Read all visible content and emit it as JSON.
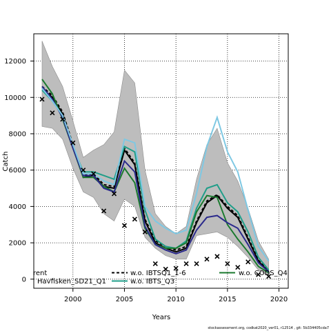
{
  "chart_data": {
    "type": "line",
    "title": "",
    "xlabel": "Years",
    "ylabel": "Catch",
    "xlim": [
      1996.2,
      2020.9
    ],
    "ylim": [
      -500,
      13500
    ],
    "grid": true,
    "grid_style": "dotted",
    "x_ticks": [
      2000,
      2005,
      2010,
      2015,
      2020
    ],
    "x_tick_labels": [
      "2000",
      "2005",
      "2010",
      "2015",
      "2020"
    ],
    "y_ticks": [
      0,
      2000,
      4000,
      6000,
      8000,
      10000,
      12000
    ],
    "y_tick_labels": [
      "0",
      "2000",
      "4000",
      "6000",
      "8000",
      "10000",
      "12000"
    ],
    "years": [
      1997,
      1998,
      1999,
      2000,
      2001,
      2002,
      2003,
      2004,
      2005,
      2006,
      2007,
      2008,
      2009,
      2010,
      2011,
      2012,
      2013,
      2014,
      2015,
      2016,
      2017,
      2018,
      2019
    ],
    "confidence_band": {
      "upper": [
        13100,
        11700,
        10600,
        8700,
        6700,
        7100,
        7400,
        8100,
        11500,
        10800,
        6000,
        3600,
        2900,
        2500,
        2900,
        5500,
        7400,
        8300,
        6400,
        5400,
        3900,
        2100,
        1100
      ],
      "lower": [
        8400,
        8300,
        7700,
        6100,
        4800,
        4500,
        3600,
        3200,
        4400,
        4000,
        2300,
        1700,
        1300,
        1100,
        1100,
        2400,
        2500,
        2600,
        2300,
        1800,
        1200,
        500,
        200
      ]
    },
    "series": [
      {
        "name": "",
        "color": "#000000",
        "style": "solid",
        "values": [
          10500,
          10000,
          9100,
          7300,
          5600,
          5700,
          5100,
          5000,
          7100,
          6300,
          3200,
          2000,
          1700,
          1500,
          1700,
          3100,
          4200,
          4600,
          3900,
          3400,
          2200,
          1000,
          400
        ]
      },
      {
        "name": "w.o. IBTSQ1_1-6",
        "color": "#000000",
        "style": "dashed",
        "values": [
          10600,
          10100,
          9200,
          7400,
          5700,
          5800,
          5200,
          5100,
          7200,
          6400,
          3300,
          2100,
          1800,
          1600,
          1800,
          3200,
          4300,
          4650,
          4000,
          3500,
          2300,
          1050,
          450
        ]
      },
      {
        "name": "w.o. IBTS_Q3",
        "color": "#1f9e89",
        "style": "solid",
        "values": [
          10400,
          9800,
          9000,
          7300,
          5900,
          5900,
          5700,
          5500,
          7300,
          7000,
          3800,
          2200,
          1800,
          1700,
          2100,
          3900,
          5000,
          5200,
          4200,
          3700,
          2600,
          1200,
          500
        ]
      },
      {
        "name": "w.o. CODS_Q4",
        "color": "#1a7a2e",
        "style": "solid",
        "values": [
          11000,
          10200,
          8800,
          7200,
          5600,
          5600,
          5100,
          4800,
          6100,
          5300,
          2800,
          1900,
          1700,
          1700,
          2000,
          3700,
          4600,
          4500,
          3000,
          2200,
          1500,
          700,
          350
        ]
      },
      {
        "name": "Havfisken_SD21_Q1",
        "color": "#2b2a8c",
        "style": "solid",
        "values": [
          10600,
          9900,
          8900,
          7200,
          5700,
          5700,
          5000,
          4800,
          6500,
          5900,
          2900,
          1900,
          1600,
          1400,
          1600,
          2700,
          3400,
          3500,
          3100,
          2800,
          1900,
          900,
          400
        ]
      },
      {
        "name": "",
        "color": "#7ec8e3",
        "style": "solid",
        "values": [
          10500,
          9800,
          9000,
          7400,
          5800,
          5800,
          5400,
          5200,
          7700,
          7500,
          4000,
          3200,
          2800,
          2500,
          2700,
          4700,
          7300,
          8900,
          7000,
          5900,
          3800,
          1800,
          1000
        ]
      }
    ],
    "observations": {
      "marker": "x",
      "color": "#000000",
      "years": [
        1997,
        1998,
        1999,
        2000,
        2001,
        2002,
        2003,
        2004,
        2005,
        2006,
        2007,
        2008,
        2009,
        2010,
        2011,
        2012,
        2013,
        2014,
        2015,
        2016,
        2017,
        2018,
        2019
      ],
      "values": [
        9900,
        9150,
        8800,
        7500,
        6000,
        5800,
        3750,
        4700,
        2950,
        3300,
        2600,
        850,
        550,
        600,
        850,
        850,
        1100,
        1250,
        850,
        650,
        950,
        250,
        150
      ]
    },
    "legend": {
      "placement": "bottom-inside",
      "entries": [
        {
          "label": "rent",
          "color": "#000000",
          "style": "solid",
          "has_line": false
        },
        {
          "label": "Havfisken_SD21_Q1",
          "color": "#2b2a8c",
          "style": "solid",
          "has_line": false
        },
        {
          "label": "w.o. IBTSQ1_1-6",
          "color": "#000000",
          "style": "dashed",
          "has_line": true
        },
        {
          "label": "w.o. IBTS_Q3",
          "color": "#1f9e89",
          "style": "solid",
          "has_line": true
        },
        {
          "label": "w.o. CODS_Q4",
          "color": "#1a7a2e",
          "style": "solid",
          "has_line": true
        }
      ]
    }
  },
  "footer": {
    "text": "stockassessment.org, codkat2020_ver01, r12514 , git: 5b334405cda7"
  }
}
